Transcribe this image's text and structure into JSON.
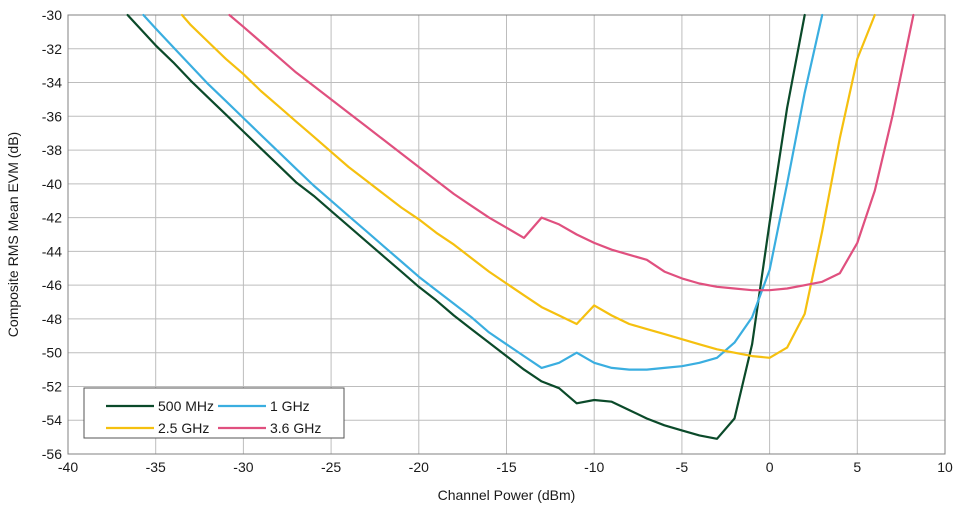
{
  "chart_data": {
    "type": "line",
    "title": "",
    "xlabel": "Channel Power (dBm)",
    "ylabel": "Composite RMS Mean EVM (dB)",
    "xlim": [
      -40,
      10
    ],
    "ylim": [
      -56,
      -30
    ],
    "xticks": [
      -40,
      -35,
      -30,
      -25,
      -20,
      -15,
      -10,
      -5,
      0,
      5,
      10
    ],
    "yticks": [
      -56,
      -54,
      -52,
      -50,
      -48,
      -46,
      -44,
      -42,
      -40,
      -38,
      -36,
      -34,
      -32,
      -30
    ],
    "xtick_labels": [
      "-40",
      "-35",
      "-30",
      "-25",
      "-20",
      "-15",
      "-10",
      "-5",
      "0",
      "5",
      "10"
    ],
    "ytick_labels": [
      "-56",
      "-54",
      "-52",
      "-50",
      "-48",
      "-46",
      "-44",
      "-42",
      "-40",
      "-38",
      "-36",
      "-34",
      "-32",
      "-30"
    ],
    "grid": true,
    "legend_position": "bottom-left",
    "series": [
      {
        "name": "500 MHz",
        "color": "#0b4a2a",
        "points": [
          [
            -36.6,
            -30.0
          ],
          [
            -35,
            -31.8
          ],
          [
            -34,
            -32.8
          ],
          [
            -33,
            -33.9
          ],
          [
            -32,
            -34.9
          ],
          [
            -31,
            -35.9
          ],
          [
            -30,
            -36.9
          ],
          [
            -29,
            -37.9
          ],
          [
            -28,
            -38.9
          ],
          [
            -27,
            -39.9
          ],
          [
            -26,
            -40.7
          ],
          [
            -25,
            -41.6
          ],
          [
            -24,
            -42.5
          ],
          [
            -23,
            -43.4
          ],
          [
            -22,
            -44.3
          ],
          [
            -21,
            -45.2
          ],
          [
            -20,
            -46.1
          ],
          [
            -19,
            -46.9
          ],
          [
            -18,
            -47.8
          ],
          [
            -17,
            -48.6
          ],
          [
            -16,
            -49.4
          ],
          [
            -15,
            -50.2
          ],
          [
            -14,
            -51.0
          ],
          [
            -13,
            -51.7
          ],
          [
            -12,
            -52.1
          ],
          [
            -11,
            -53.0
          ],
          [
            -10,
            -52.8
          ],
          [
            -9,
            -52.9
          ],
          [
            -8,
            -53.4
          ],
          [
            -7,
            -53.9
          ],
          [
            -6,
            -54.3
          ],
          [
            -5,
            -54.6
          ],
          [
            -4,
            -54.9
          ],
          [
            -3,
            -55.1
          ],
          [
            -2,
            -53.9
          ],
          [
            -1,
            -49.5
          ],
          [
            0,
            -42.3
          ],
          [
            1,
            -35.5
          ],
          [
            2,
            -30.0
          ]
        ]
      },
      {
        "name": "1 GHz",
        "color": "#3aaee0",
        "points": [
          [
            -35.7,
            -30.0
          ],
          [
            -35,
            -30.8
          ],
          [
            -34,
            -31.9
          ],
          [
            -33,
            -33.0
          ],
          [
            -32,
            -34.1
          ],
          [
            -31,
            -35.1
          ],
          [
            -30,
            -36.1
          ],
          [
            -29,
            -37.1
          ],
          [
            -28,
            -38.1
          ],
          [
            -27,
            -39.1
          ],
          [
            -26,
            -40.1
          ],
          [
            -25,
            -41.0
          ],
          [
            -24,
            -41.9
          ],
          [
            -23,
            -42.8
          ],
          [
            -22,
            -43.7
          ],
          [
            -21,
            -44.6
          ],
          [
            -20,
            -45.5
          ],
          [
            -19,
            -46.3
          ],
          [
            -18,
            -47.1
          ],
          [
            -17,
            -47.9
          ],
          [
            -16,
            -48.8
          ],
          [
            -15,
            -49.5
          ],
          [
            -14,
            -50.2
          ],
          [
            -13,
            -50.9
          ],
          [
            -12,
            -50.6
          ],
          [
            -11,
            -50.0
          ],
          [
            -10,
            -50.6
          ],
          [
            -9,
            -50.9
          ],
          [
            -8,
            -51.0
          ],
          [
            -7,
            -51.0
          ],
          [
            -6,
            -50.9
          ],
          [
            -5,
            -50.8
          ],
          [
            -4,
            -50.6
          ],
          [
            -3,
            -50.3
          ],
          [
            -2,
            -49.4
          ],
          [
            -1,
            -47.9
          ],
          [
            0,
            -45.1
          ],
          [
            1,
            -40.0
          ],
          [
            2,
            -34.6
          ],
          [
            3,
            -30.0
          ]
        ]
      },
      {
        "name": "2.5 GHz",
        "color": "#f5c00f",
        "points": [
          [
            -33.5,
            -30.0
          ],
          [
            -33,
            -30.6
          ],
          [
            -32,
            -31.6
          ],
          [
            -31,
            -32.6
          ],
          [
            -30,
            -33.5
          ],
          [
            -29,
            -34.5
          ],
          [
            -28,
            -35.4
          ],
          [
            -27,
            -36.3
          ],
          [
            -26,
            -37.2
          ],
          [
            -25,
            -38.1
          ],
          [
            -24,
            -39.0
          ],
          [
            -23,
            -39.8
          ],
          [
            -22,
            -40.6
          ],
          [
            -21,
            -41.4
          ],
          [
            -20,
            -42.1
          ],
          [
            -19,
            -42.9
          ],
          [
            -18,
            -43.6
          ],
          [
            -17,
            -44.4
          ],
          [
            -16,
            -45.2
          ],
          [
            -15,
            -45.9
          ],
          [
            -14,
            -46.6
          ],
          [
            -13,
            -47.3
          ],
          [
            -12,
            -47.8
          ],
          [
            -11,
            -48.3
          ],
          [
            -10,
            -47.2
          ],
          [
            -9,
            -47.8
          ],
          [
            -8,
            -48.3
          ],
          [
            -7,
            -48.6
          ],
          [
            -6,
            -48.9
          ],
          [
            -5,
            -49.2
          ],
          [
            -4,
            -49.5
          ],
          [
            -3,
            -49.8
          ],
          [
            -2,
            -50.0
          ],
          [
            -1,
            -50.2
          ],
          [
            0,
            -50.3
          ],
          [
            1,
            -49.7
          ],
          [
            2,
            -47.7
          ],
          [
            3,
            -42.8
          ],
          [
            4,
            -37.3
          ],
          [
            5,
            -32.6
          ],
          [
            6,
            -30.0
          ]
        ]
      },
      {
        "name": "3.6 GHz",
        "color": "#e0507f",
        "points": [
          [
            -30.8,
            -30.0
          ],
          [
            -30,
            -30.7
          ],
          [
            -29,
            -31.6
          ],
          [
            -28,
            -32.5
          ],
          [
            -27,
            -33.4
          ],
          [
            -26,
            -34.2
          ],
          [
            -25,
            -35.0
          ],
          [
            -24,
            -35.8
          ],
          [
            -23,
            -36.6
          ],
          [
            -22,
            -37.4
          ],
          [
            -21,
            -38.2
          ],
          [
            -20,
            -39.0
          ],
          [
            -19,
            -39.8
          ],
          [
            -18,
            -40.6
          ],
          [
            -17,
            -41.3
          ],
          [
            -16,
            -42.0
          ],
          [
            -15,
            -42.6
          ],
          [
            -14,
            -43.2
          ],
          [
            -13,
            -42.0
          ],
          [
            -12,
            -42.4
          ],
          [
            -11,
            -43.0
          ],
          [
            -10,
            -43.5
          ],
          [
            -9,
            -43.9
          ],
          [
            -8,
            -44.2
          ],
          [
            -7,
            -44.5
          ],
          [
            -6,
            -45.2
          ],
          [
            -5,
            -45.6
          ],
          [
            -4,
            -45.9
          ],
          [
            -3,
            -46.1
          ],
          [
            -2,
            -46.2
          ],
          [
            -1,
            -46.3
          ],
          [
            0,
            -46.3
          ],
          [
            1,
            -46.2
          ],
          [
            2,
            -46.0
          ],
          [
            3,
            -45.8
          ],
          [
            4,
            -45.3
          ],
          [
            5,
            -43.5
          ],
          [
            6,
            -40.4
          ],
          [
            7,
            -36.0
          ],
          [
            8,
            -31.0
          ],
          [
            8.2,
            -30.0
          ]
        ]
      }
    ]
  }
}
